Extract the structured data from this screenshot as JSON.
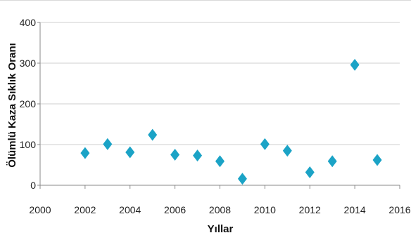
{
  "chart_data": {
    "type": "scatter",
    "title": "",
    "xlabel": "Yıllar",
    "ylabel": "Ölümlü Kaza Sıklık Oranı",
    "xlim": [
      2000,
      2016
    ],
    "ylim": [
      0,
      400
    ],
    "xticks": [
      "2000",
      "2002",
      "2004",
      "2006",
      "2008",
      "2010",
      "2012",
      "2014",
      "2016"
    ],
    "yticks": [
      "0",
      "100",
      "200",
      "300",
      "400"
    ],
    "grid": "horizontal",
    "marker_color": "#1ba3c6",
    "series": [
      {
        "x": [
          2002,
          2003,
          2004,
          2005,
          2006,
          2007,
          2008,
          2009,
          2010,
          2011,
          2012,
          2013,
          2014,
          2015
        ],
        "y": [
          79,
          101,
          81,
          124,
          75,
          73,
          59,
          16,
          101,
          85,
          32,
          59,
          296,
          62
        ]
      }
    ]
  }
}
